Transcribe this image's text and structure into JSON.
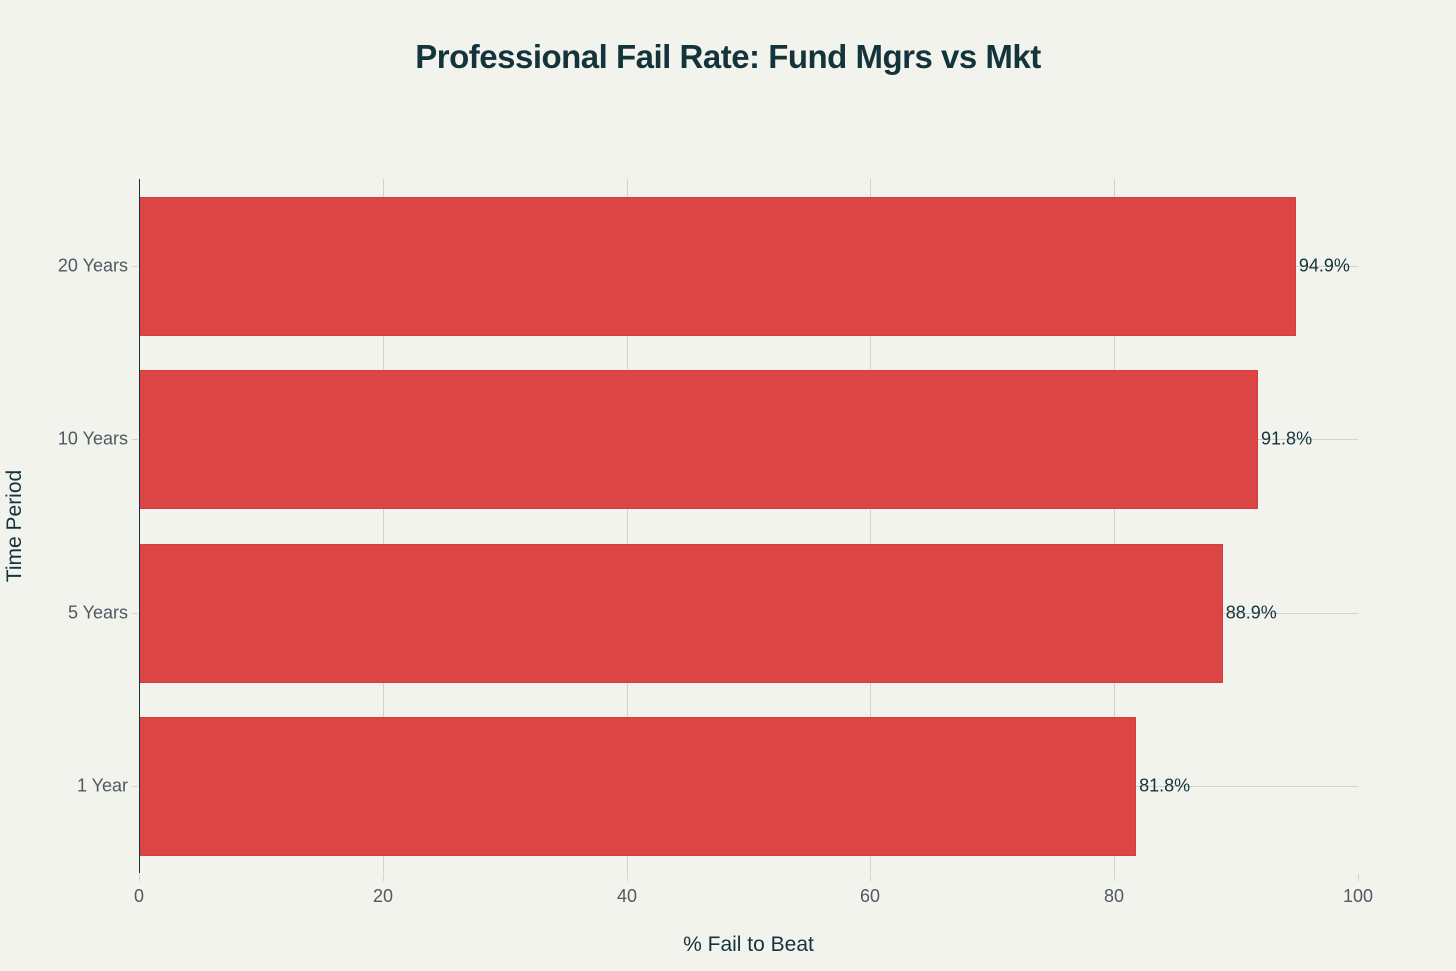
{
  "title": "Professional Fail Rate: Fund Mgrs vs Mkt",
  "colors": {
    "background": "#F3F3EE",
    "bar": "#DB4545",
    "grid": "#D3D3CE",
    "text": "#13343B",
    "tick_text": "#4E5A60"
  },
  "xaxis": {
    "label": "% Fail to Beat",
    "ticks": [
      "0",
      "20",
      "40",
      "60",
      "80",
      "100"
    ]
  },
  "yaxis": {
    "label": "Time Period",
    "ticks": [
      "20 Years",
      "10 Years",
      "5 Years",
      "1 Year"
    ]
  },
  "bars": [
    {
      "category": "20 Years",
      "value": 94.9,
      "label": "94.9%"
    },
    {
      "category": "10 Years",
      "value": 91.8,
      "label": "91.8%"
    },
    {
      "category": "5 Years",
      "value": 88.9,
      "label": "88.9%"
    },
    {
      "category": "1 Year",
      "value": 81.8,
      "label": "81.8%"
    }
  ],
  "chart_data": {
    "type": "bar",
    "orientation": "horizontal",
    "title": "Professional Fail Rate: Fund Mgrs vs Mkt",
    "categories": [
      "1 Year",
      "5 Years",
      "10 Years",
      "20 Years"
    ],
    "values": [
      81.8,
      88.9,
      91.8,
      94.9
    ],
    "data_labels": [
      "81.8%",
      "88.9%",
      "91.8%",
      "94.9%"
    ],
    "xlabel": "% Fail to Beat",
    "ylabel": "Time Period",
    "xlim": [
      0,
      100
    ],
    "xticks": [
      0,
      20,
      40,
      60,
      80,
      100
    ],
    "grid": true,
    "legend": false,
    "bar_color": "#DB4545"
  }
}
